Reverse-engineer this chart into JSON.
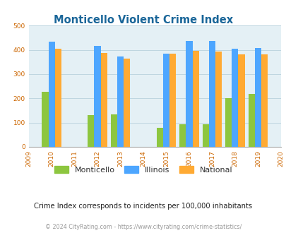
{
  "title": "Monticello Violent Crime Index",
  "years": [
    2009,
    2010,
    2011,
    2012,
    2013,
    2014,
    2015,
    2016,
    2017,
    2018,
    2019,
    2020
  ],
  "data_years": [
    2010,
    2012,
    2013,
    2015,
    2016,
    2017,
    2018,
    2019
  ],
  "monticello": [
    228,
    130,
    133,
    78,
    93,
    93,
    202,
    217
  ],
  "illinois": [
    433,
    415,
    373,
    383,
    438,
    438,
    405,
    408
  ],
  "national": [
    405,
    387,
    365,
    383,
    397,
    394,
    380,
    380
  ],
  "bar_color_monticello": "#8dc63f",
  "bar_color_illinois": "#4da6ff",
  "bar_color_national": "#ffaa33",
  "bg_color": "#e4f0f5",
  "title_color": "#1a6699",
  "ylabel_max": 500,
  "yticks": [
    0,
    100,
    200,
    300,
    400,
    500
  ],
  "footer_text": "Crime Index corresponds to incidents per 100,000 inhabitants",
  "copyright_text": "© 2024 CityRating.com - https://www.cityrating.com/crime-statistics/",
  "legend_labels": [
    "Monticello",
    "Illinois",
    "National"
  ],
  "bar_width": 0.28
}
